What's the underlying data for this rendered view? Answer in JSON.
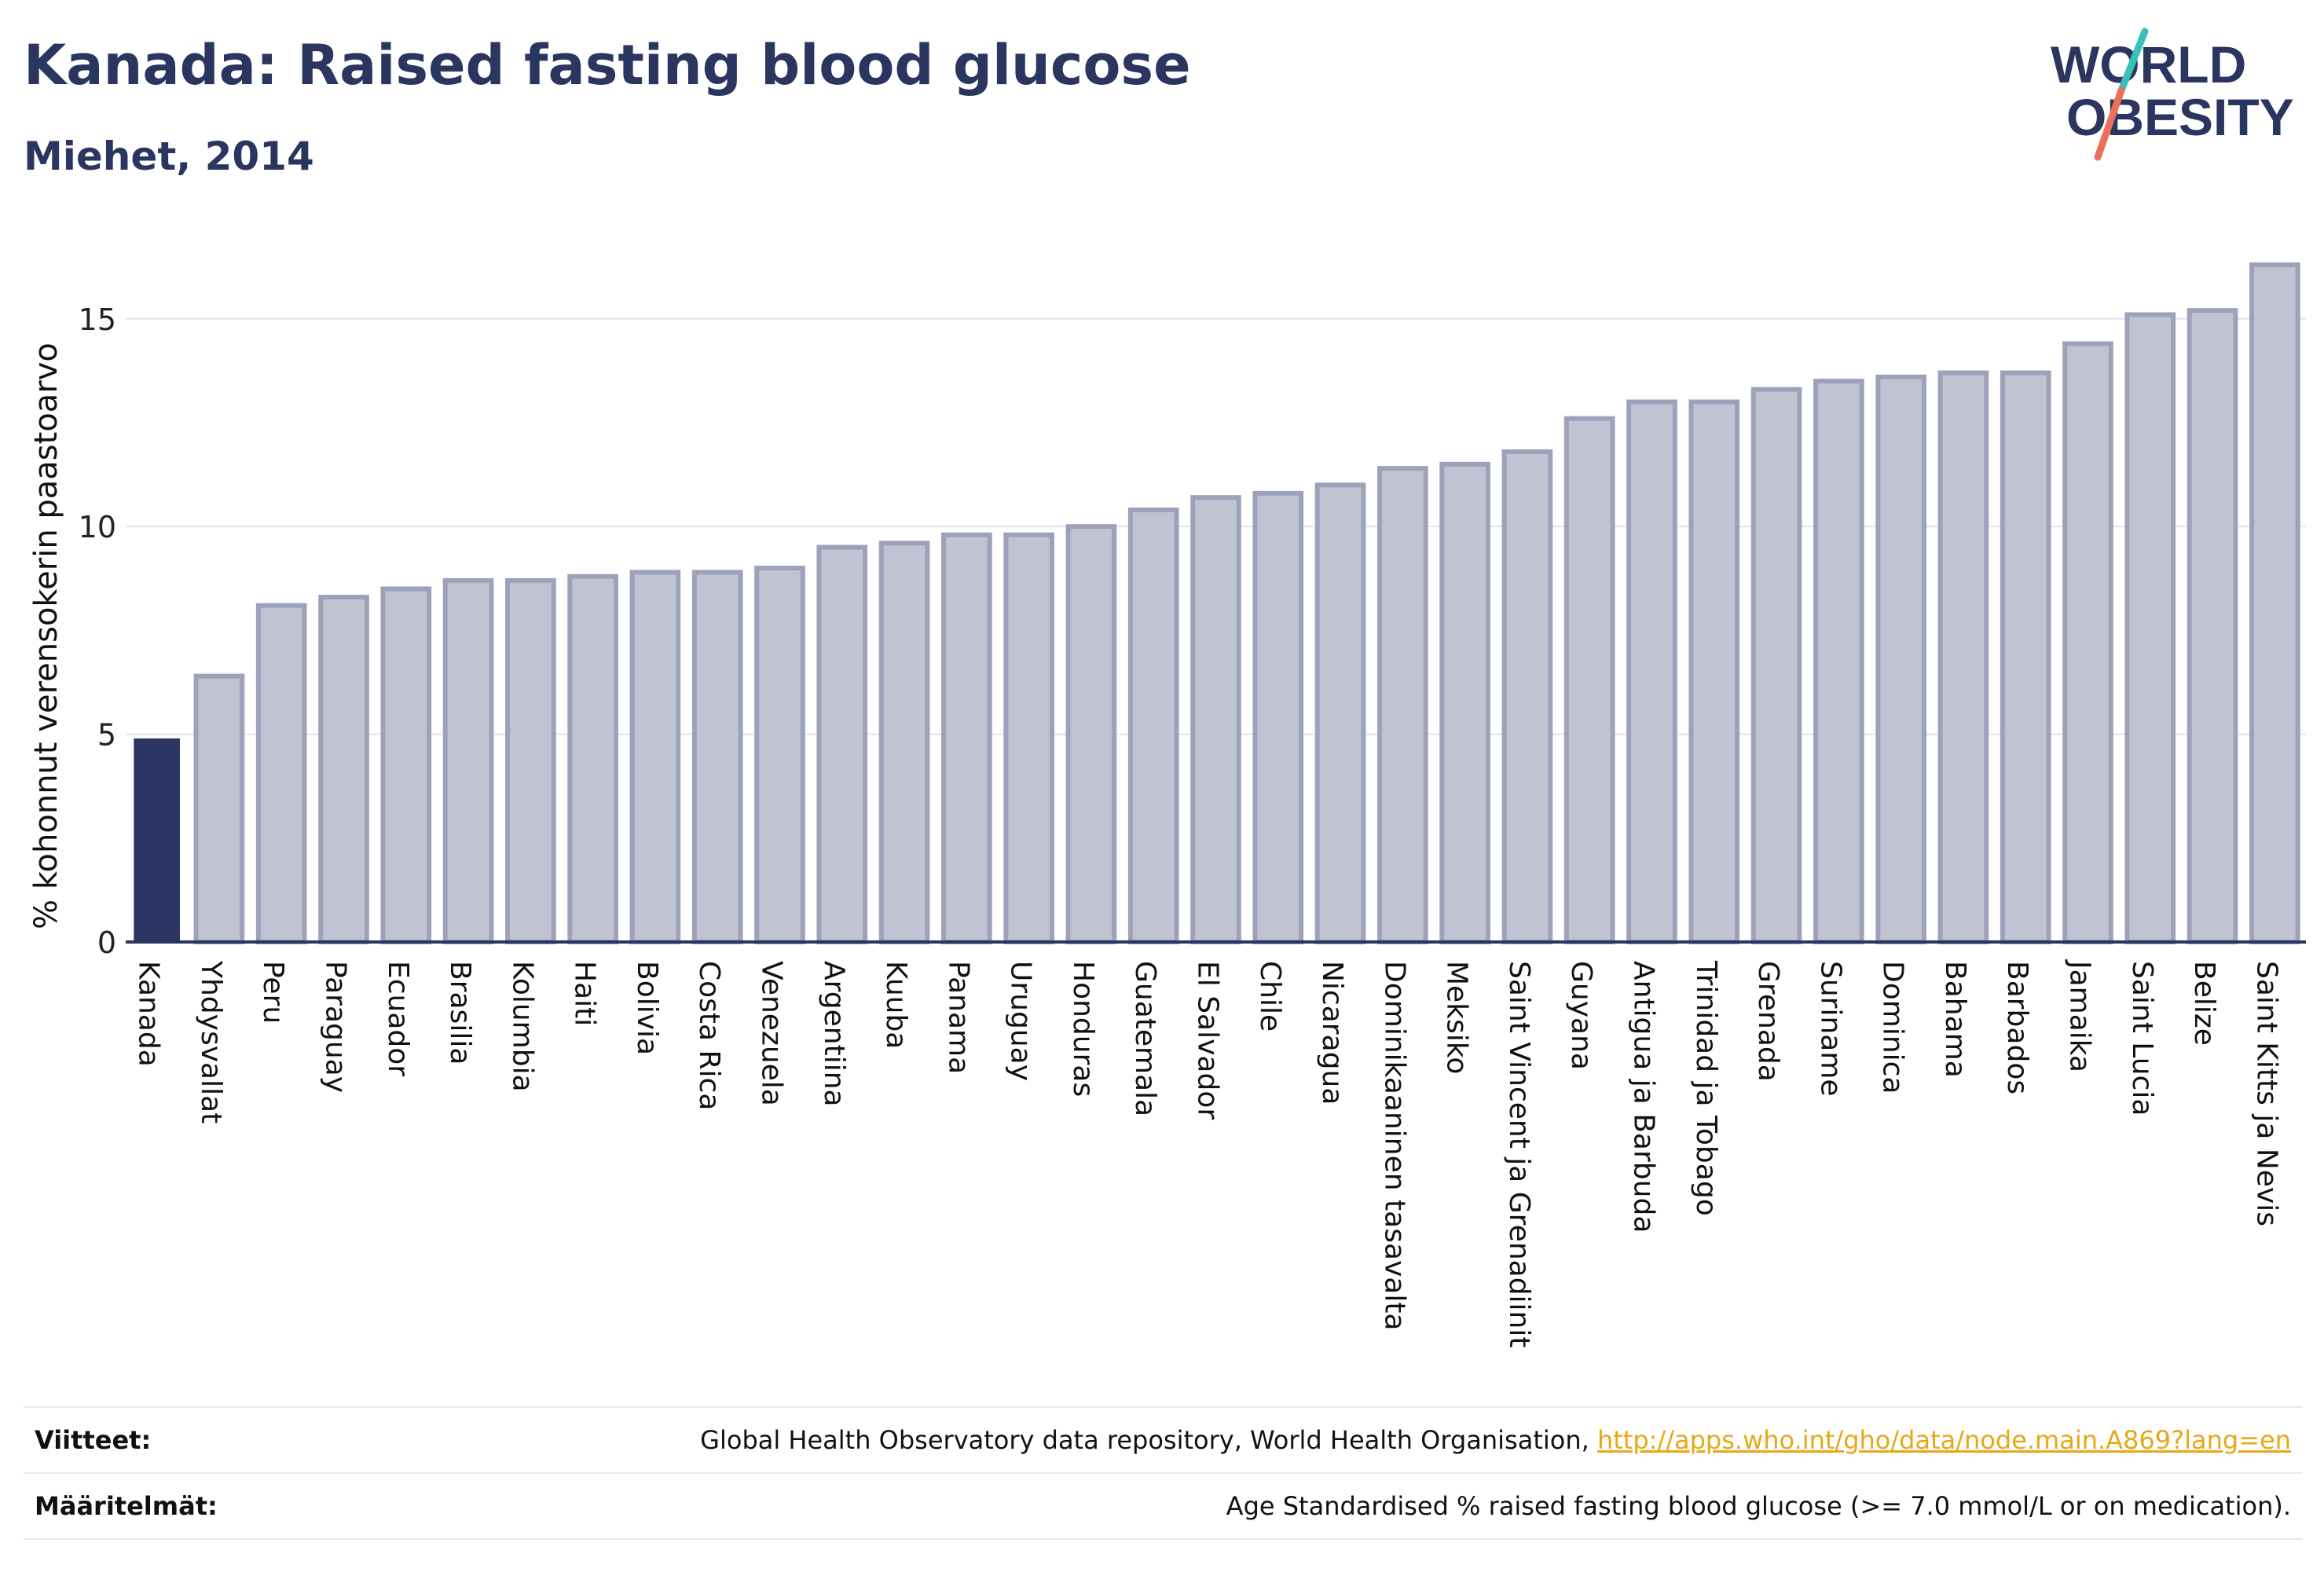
{
  "header": {
    "title": "Kanada: Raised fasting blood glucose",
    "subtitle": "Miehet, 2014"
  },
  "logo": {
    "line1": "WORLD",
    "line2": "OBESITY",
    "accent_colors": [
      "#3bbfb9",
      "#e8715b"
    ]
  },
  "colors": {
    "highlight_bar": "#2b3563",
    "other_bar_fill": "#c0c3d1",
    "other_bar_stroke": "#9da2ba",
    "grid": "#e3e3e8",
    "axis": "#2a3560"
  },
  "chart_data": {
    "type": "bar",
    "ylabel": "% kohonnut verensokerin paastoarvo",
    "ylim": [
      0,
      17
    ],
    "yticks": [
      0,
      5,
      10,
      15
    ],
    "grid": true,
    "highlight": "Kanada",
    "categories": [
      "Kanada",
      "Yhdysvallat",
      "Peru",
      "Paraguay",
      "Ecuador",
      "Brasilia",
      "Kolumbia",
      "Haiti",
      "Bolivia",
      "Costa Rica",
      "Venezuela",
      "Argentiina",
      "Kuuba",
      "Panama",
      "Uruguay",
      "Honduras",
      "Guatemala",
      "El Salvador",
      "Chile",
      "Nicaragua",
      "Dominikaaninen tasavalta",
      "Meksiko",
      "Saint Vincent ja Grenadiinit",
      "Guyana",
      "Antigua ja Barbuda",
      "Trinidad ja Tobago",
      "Grenada",
      "Suriname",
      "Dominica",
      "Bahama",
      "Barbados",
      "Jamaika",
      "Saint Lucia",
      "Belize",
      "Saint Kitts ja Nevis"
    ],
    "values": [
      4.9,
      6.4,
      8.1,
      8.3,
      8.5,
      8.7,
      8.7,
      8.8,
      8.9,
      8.9,
      9.0,
      9.5,
      9.6,
      9.8,
      9.8,
      10.0,
      10.4,
      10.7,
      10.8,
      11.0,
      11.4,
      11.5,
      11.8,
      12.6,
      13.0,
      13.0,
      13.3,
      13.5,
      13.6,
      13.7,
      13.7,
      14.4,
      15.1,
      15.2,
      16.3
    ]
  },
  "footer": {
    "sources_label": "Viitteet:",
    "sources_text": "Global Health Observatory data repository, World Health Organisation, ",
    "sources_link": "http://apps.who.int/gho/data/node.main.A869?lang=en",
    "definitions_label": "Määritelmät:",
    "definitions_text": "Age Standardised % raised fasting blood glucose (>= 7.0 mmol/L or on medication)."
  }
}
